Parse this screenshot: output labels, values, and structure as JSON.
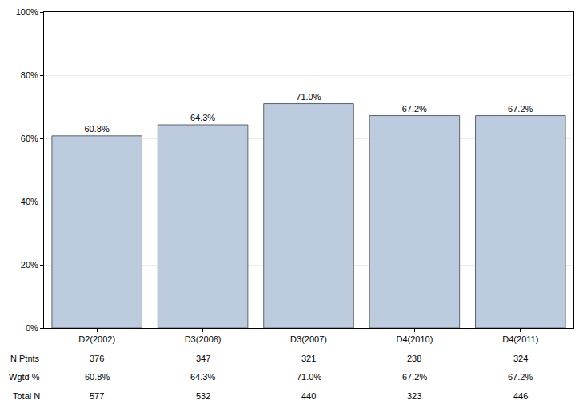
{
  "chart_data": {
    "type": "bar",
    "categories": [
      "D2(2002)",
      "D3(2006)",
      "D3(2007)",
      "D4(2010)",
      "D4(2011)"
    ],
    "values": [
      60.8,
      64.3,
      71.0,
      67.2,
      67.2
    ],
    "value_labels": [
      "60.8%",
      "64.3%",
      "71.0%",
      "67.2%",
      "67.2%"
    ],
    "color": "#bccbdd",
    "data_labels": true,
    "ylim": [
      0,
      100
    ],
    "yticks": [
      {
        "value": 0,
        "label": "0%"
      },
      {
        "value": 20,
        "label": "20%"
      },
      {
        "value": 40,
        "label": "40%"
      },
      {
        "value": 60,
        "label": "60%"
      },
      {
        "value": 80,
        "label": "80%"
      },
      {
        "value": 100,
        "label": "100%"
      }
    ],
    "grid": true
  },
  "table": {
    "rows": [
      {
        "label": "N Ptnts",
        "values": [
          376,
          347,
          321,
          238,
          324
        ]
      },
      {
        "label": "Wgtd %",
        "values": [
          "60.8%",
          "64.3%",
          "71.0%",
          "67.2%",
          "67.2%"
        ]
      },
      {
        "label": "Total N",
        "values": [
          577,
          532,
          440,
          323,
          446
        ]
      }
    ]
  }
}
